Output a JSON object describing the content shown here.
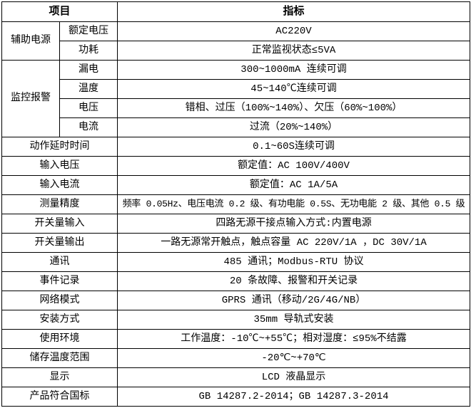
{
  "page": {
    "background_color": "#ffffff",
    "grid_color": "#000000",
    "text_color": "#000000"
  },
  "table": {
    "header": {
      "item": "项目",
      "spec": "指标"
    },
    "rows": [
      {
        "group": "辅助电源",
        "group_span": 2,
        "sub": "额定电压",
        "value": "AC220V"
      },
      {
        "sub": "功耗",
        "value": "正常监视状态≤5VA"
      },
      {
        "group": "监控报警",
        "group_span": 4,
        "sub": "漏电",
        "value": "300~1000mA 连续可调"
      },
      {
        "sub": "温度",
        "value": "45~140℃连续可调"
      },
      {
        "sub": "电压",
        "value": "错相、过压（100%~140%）、欠压（60%~100%）"
      },
      {
        "sub": "电流",
        "value": "过流（20%~140%）"
      },
      {
        "item": "动作延时时间",
        "value": "0.1~60S连续可调"
      },
      {
        "item": "输入电压",
        "value": "额定值：AC 100V/400V"
      },
      {
        "item": "输入电流",
        "value": "额定值：AC 1A/5A"
      },
      {
        "item": "测量精度",
        "value": "频率 0.05Hz、电压电流 0.2 级、有功电能 0.5S、无功电能 2 级、其他 0.5 级",
        "long": true
      },
      {
        "item": "开关量输入",
        "value": "四路无源干接点输入方式:内置电源"
      },
      {
        "item": "开关量输出",
        "value": "一路无源常开触点，触点容量 AC 220V/1A ，DC 30V/1A"
      },
      {
        "item": "通讯",
        "value": "485 通讯；Modbus-RTU 协议"
      },
      {
        "item": "事件记录",
        "value": "20 条故障、报警和开关记录"
      },
      {
        "item": "网络模式",
        "value": "GPRS 通讯（移动/2G/4G/NB）"
      },
      {
        "item": "安装方式",
        "value": "35mm 导轨式安装"
      },
      {
        "item": "使用环境",
        "value": "工作温度：-10℃~+55℃；相对湿度：≤95%不结露"
      },
      {
        "item": "储存温度范围",
        "value": "-20℃~+70℃"
      },
      {
        "item": "显示",
        "value": "LCD 液晶显示"
      },
      {
        "item": "产品符合国标",
        "value": "GB 14287.2-2014；GB 14287.3-2014"
      }
    ]
  }
}
